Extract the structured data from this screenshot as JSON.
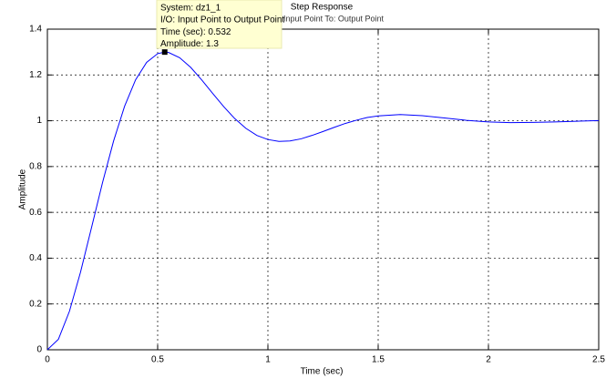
{
  "chart_data": {
    "type": "line",
    "title": "Step Response",
    "subtitle": "From: Input Point  To: Output Point",
    "x_label": "Time (sec)",
    "y_label": "Amplitude",
    "x": [
      0,
      0.05,
      0.1,
      0.15,
      0.2,
      0.25,
      0.3,
      0.35,
      0.4,
      0.45,
      0.5,
      0.532,
      0.55,
      0.6,
      0.65,
      0.7,
      0.75,
      0.8,
      0.85,
      0.9,
      0.95,
      1.0,
      1.05,
      1.1,
      1.15,
      1.2,
      1.25,
      1.3,
      1.35,
      1.4,
      1.45,
      1.5,
      1.6,
      1.7,
      1.8,
      1.9,
      2.0,
      2.1,
      2.2,
      2.3,
      2.4,
      2.5
    ],
    "series": [
      {
        "name": "dz1_1",
        "color": "#0000ff",
        "values": [
          0,
          0.046,
          0.168,
          0.338,
          0.533,
          0.73,
          0.911,
          1.063,
          1.179,
          1.255,
          1.293,
          1.3,
          1.298,
          1.275,
          1.233,
          1.178,
          1.119,
          1.061,
          1.009,
          0.967,
          0.936,
          0.918,
          0.91,
          0.912,
          0.921,
          0.936,
          0.953,
          0.971,
          0.988,
          1.002,
          1.014,
          1.021,
          1.027,
          1.022,
          1.012,
          1.002,
          0.995,
          0.992,
          0.993,
          0.995,
          0.998,
          1.001
        ]
      }
    ],
    "xlim": [
      0,
      2.5
    ],
    "ylim": [
      0,
      1.4
    ],
    "xticks": [
      0,
      0.5,
      1,
      1.5,
      2,
      2.5
    ],
    "yticks": [
      0,
      0.2,
      0.4,
      0.6,
      0.8,
      1,
      1.2,
      1.4
    ],
    "grid": true,
    "datatip": {
      "lines": [
        "System: dz1_1",
        "I/O: Input Point to Output Point"
      ],
      "time_label": "Time (sec):",
      "time": 0.532,
      "amplitude_label": "Amplitude:",
      "amplitude": 1.3
    }
  }
}
